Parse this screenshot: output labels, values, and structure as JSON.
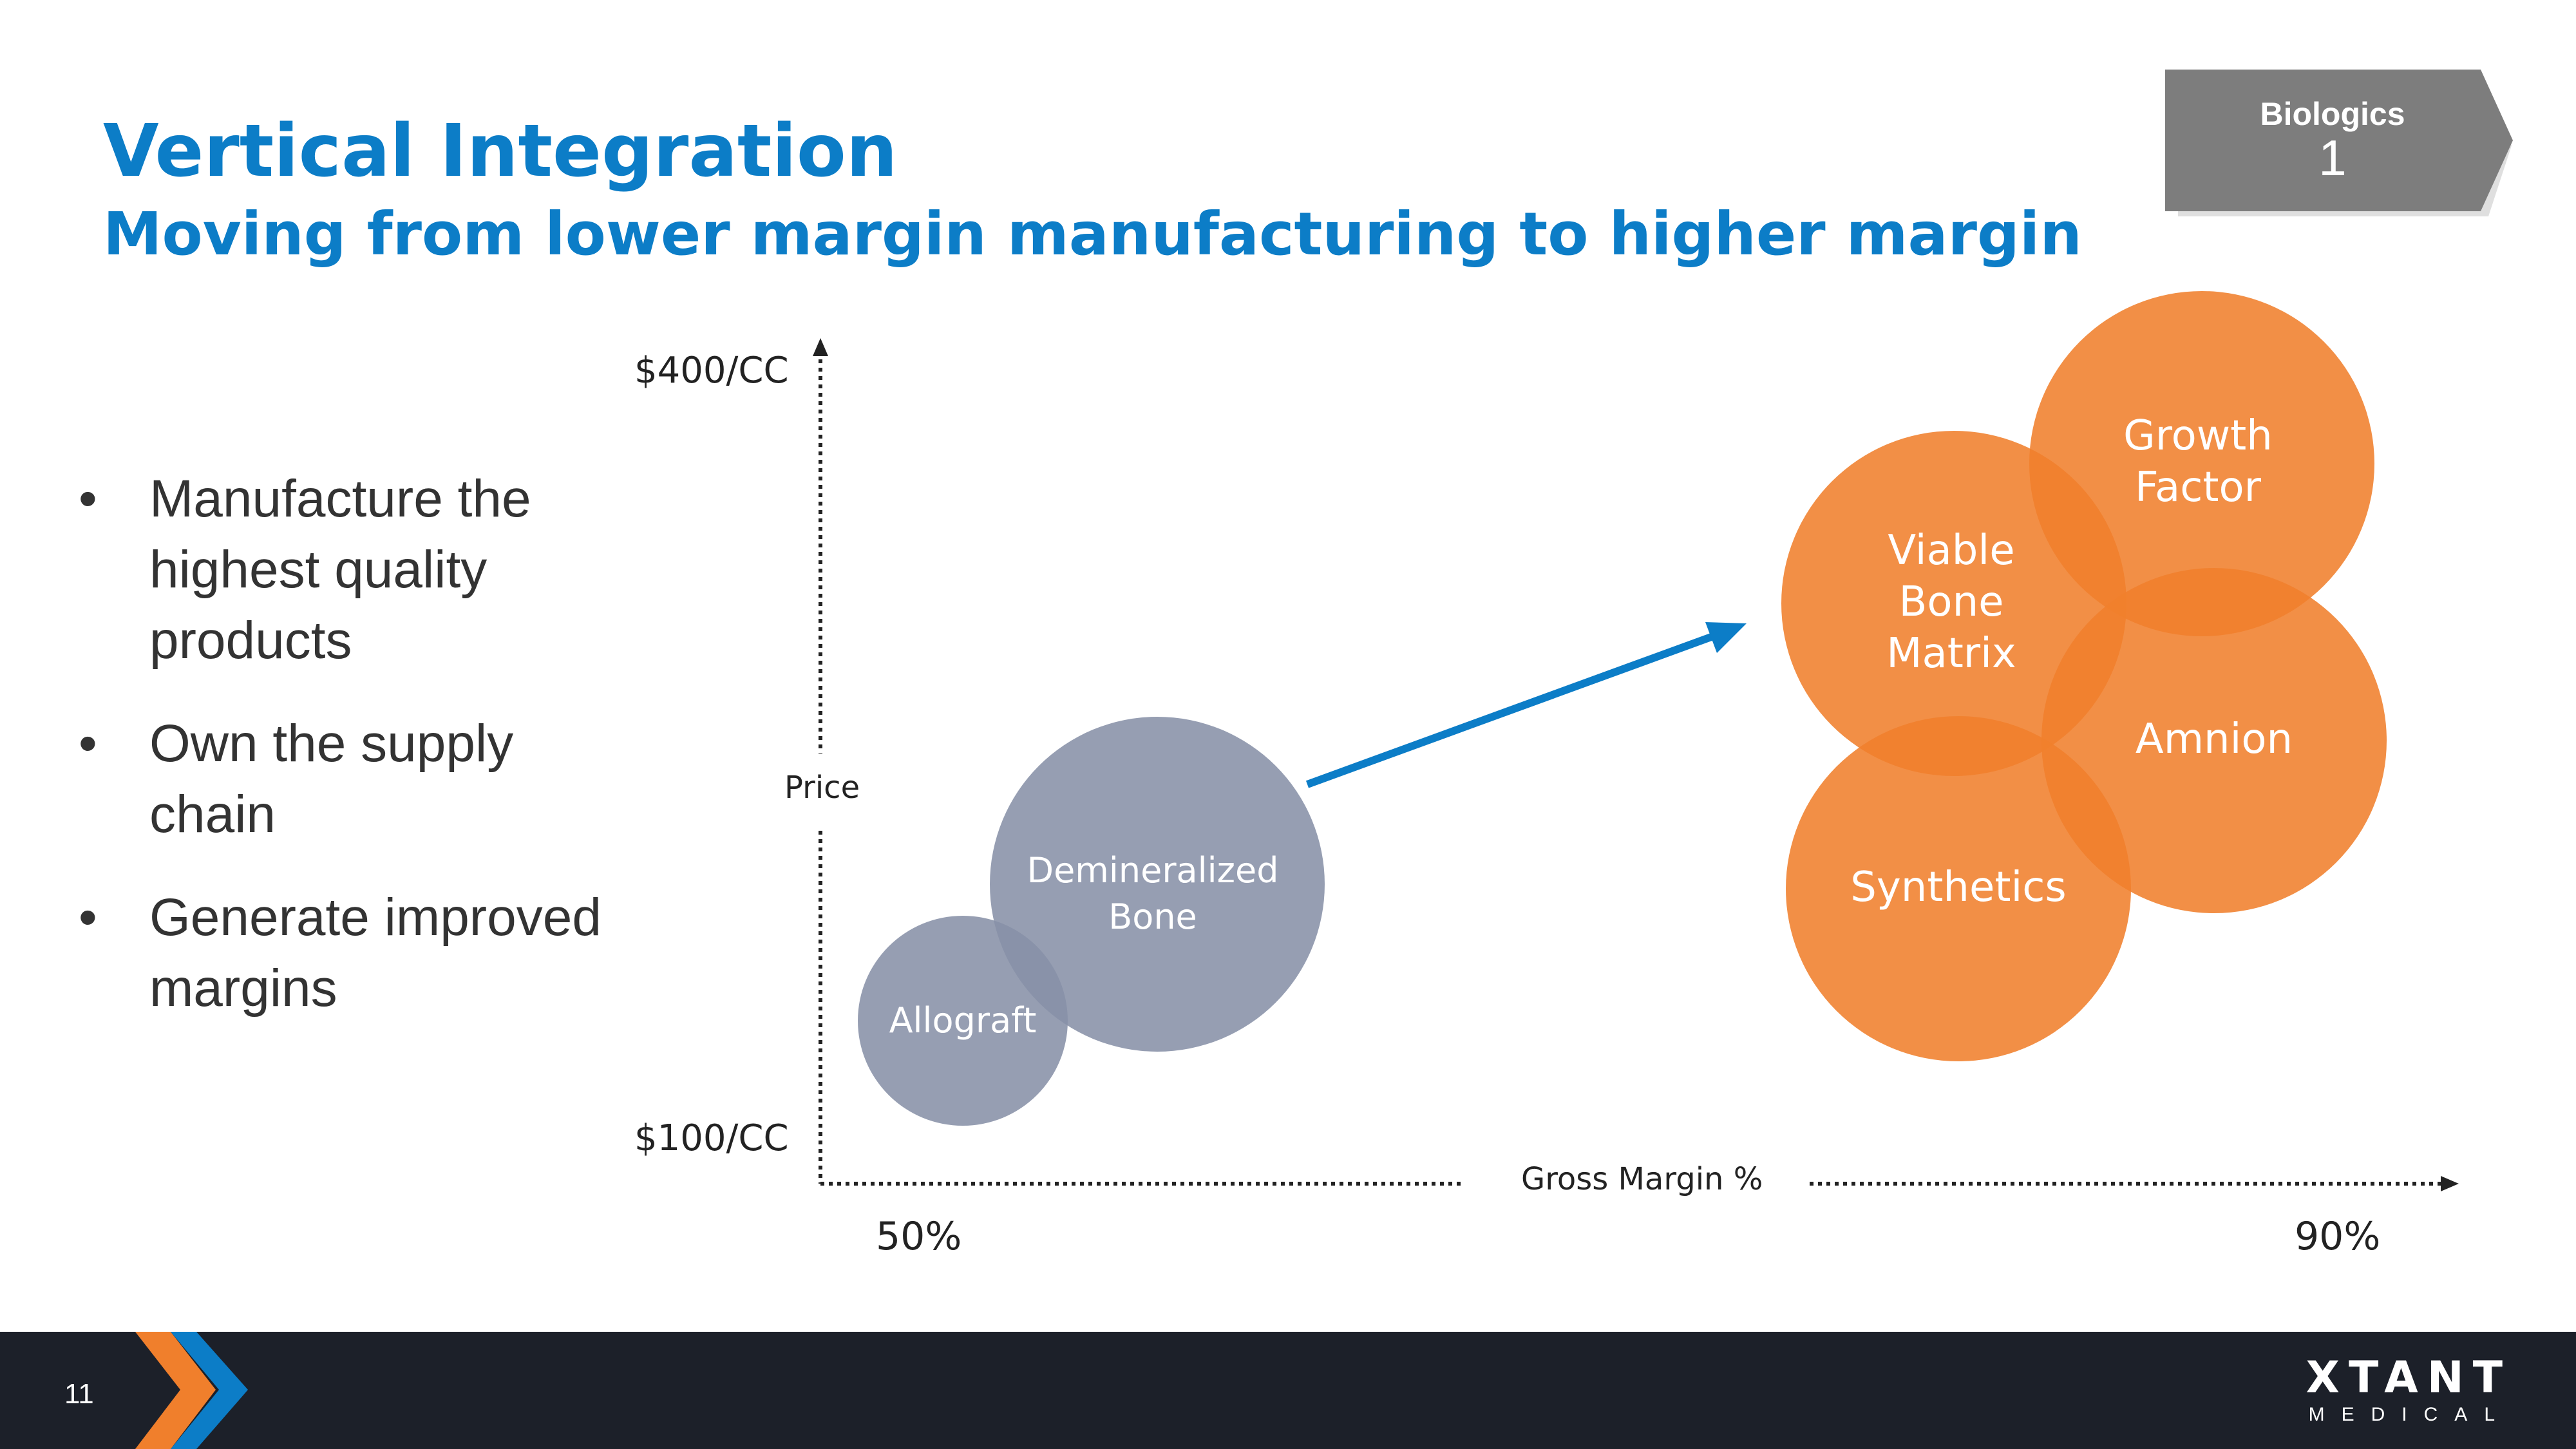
{
  "slide": {
    "title": "Vertical Integration",
    "subtitle": "Moving from lower margin manufacturing to higher margin",
    "tag": {
      "label": "Biologics",
      "number": "1"
    },
    "bullets": [
      "Manufacture the highest quality products",
      "Own the supply chain",
      "Generate improved margins"
    ],
    "bullet_char": "•",
    "page_number": "11",
    "logo": {
      "main": "XTANT",
      "sub": "MEDICAL"
    }
  },
  "axes": {
    "y_title": "Price",
    "y_max_label": "$400/CC",
    "y_min_label": "$100/CC",
    "x_title": "Gross Margin %",
    "x_min_label": "50%",
    "x_max_label": "90%"
  },
  "bubbles": [
    {
      "lines": [
        "Allograft"
      ],
      "group": "lower-margin"
    },
    {
      "lines": [
        "Demineralized",
        "Bone"
      ],
      "group": "lower-margin"
    },
    {
      "lines": [
        "Viable",
        "Bone",
        "Matrix"
      ],
      "group": "higher-margin"
    },
    {
      "lines": [
        "Growth",
        "Factor"
      ],
      "group": "higher-margin"
    },
    {
      "lines": [
        "Amnion"
      ],
      "group": "higher-margin"
    },
    {
      "lines": [
        "Synthetics"
      ],
      "group": "higher-margin"
    }
  ],
  "colors": {
    "title": "#0c7dc7",
    "lower_margin_bubble": "#8791a7",
    "higher_margin_bubble": "#f07f2c",
    "arrow": "#0c7dc7",
    "tag": "#7d7d7d",
    "footer": "#1c2029",
    "chevron_orange": "#f07f2c",
    "chevron_blue": "#0c7dc7"
  },
  "icons": [
    "chevron-logo-icon",
    "arrow-right-icon",
    "arrow-up-icon"
  ]
}
